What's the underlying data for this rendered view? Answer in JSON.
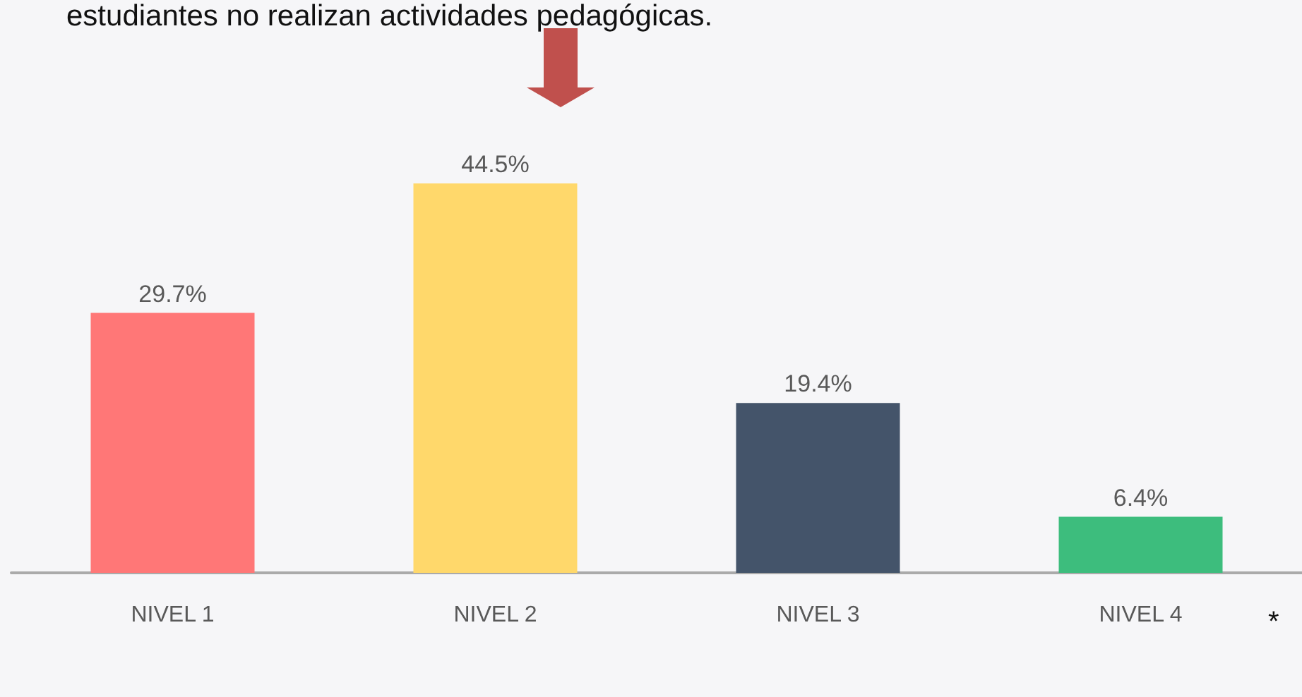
{
  "chart_data": {
    "type": "bar",
    "title": "estudiantes no realizan actividades pedagógicas.",
    "categories": [
      "NIVEL 1",
      "NIVEL 2",
      "NIVEL 3",
      "NIVEL 4"
    ],
    "values": [
      29.7,
      44.5,
      19.4,
      6.4
    ],
    "colors": [
      "#ff7777",
      "#ffd86b",
      "#44546a",
      "#3dbd7d"
    ],
    "value_labels": [
      "29.7%",
      "44.5%",
      "19.4%",
      "6.4%"
    ],
    "annotations": [
      "*"
    ]
  }
}
